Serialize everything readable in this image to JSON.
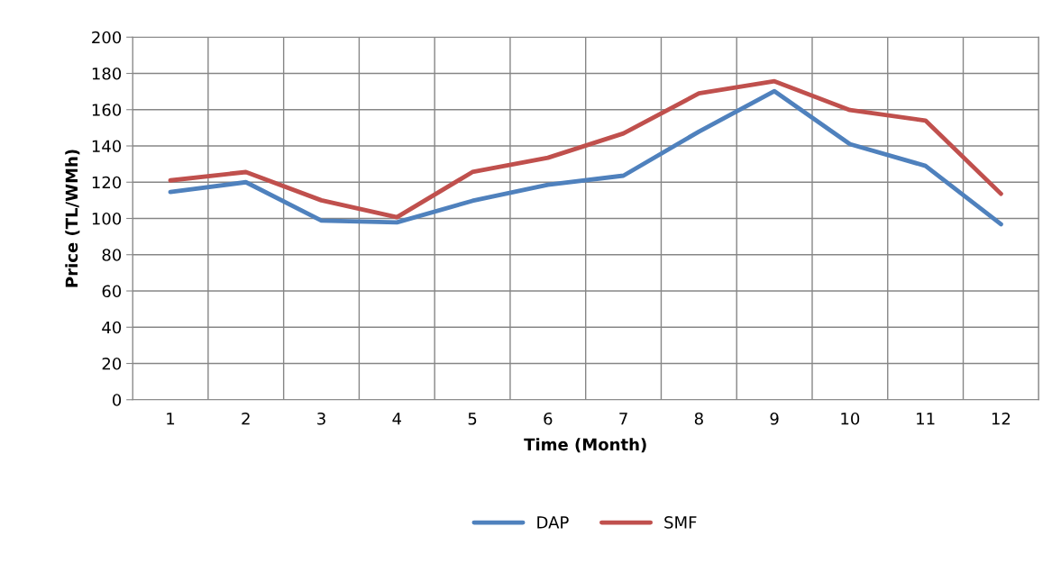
{
  "chart_data": {
    "type": "line",
    "xlabel": "Time (Month)",
    "ylabel": "Price (TL/WMh)",
    "categories": [
      "1",
      "2",
      "3",
      "4",
      "5",
      "6",
      "7",
      "8",
      "9",
      "10",
      "11",
      "12"
    ],
    "series": [
      {
        "name": "DAP",
        "color": "#4f81bd",
        "values": [
          114.6,
          120,
          98.8,
          97.8,
          109.7,
          118.6,
          123.6,
          147.9,
          170.2,
          141,
          129,
          96.8
        ]
      },
      {
        "name": "SMF",
        "color": "#c0504d",
        "values": [
          121,
          125.6,
          110,
          100.7,
          125.6,
          133.5,
          146.9,
          169,
          175.7,
          159.8,
          154,
          113.6
        ]
      }
    ],
    "ylim": [
      0,
      200
    ],
    "yticks": [
      0,
      20,
      40,
      60,
      80,
      100,
      120,
      140,
      160,
      180,
      200
    ],
    "grid": true,
    "legend": "bottom",
    "marker": "none",
    "line_style": "solid"
  }
}
